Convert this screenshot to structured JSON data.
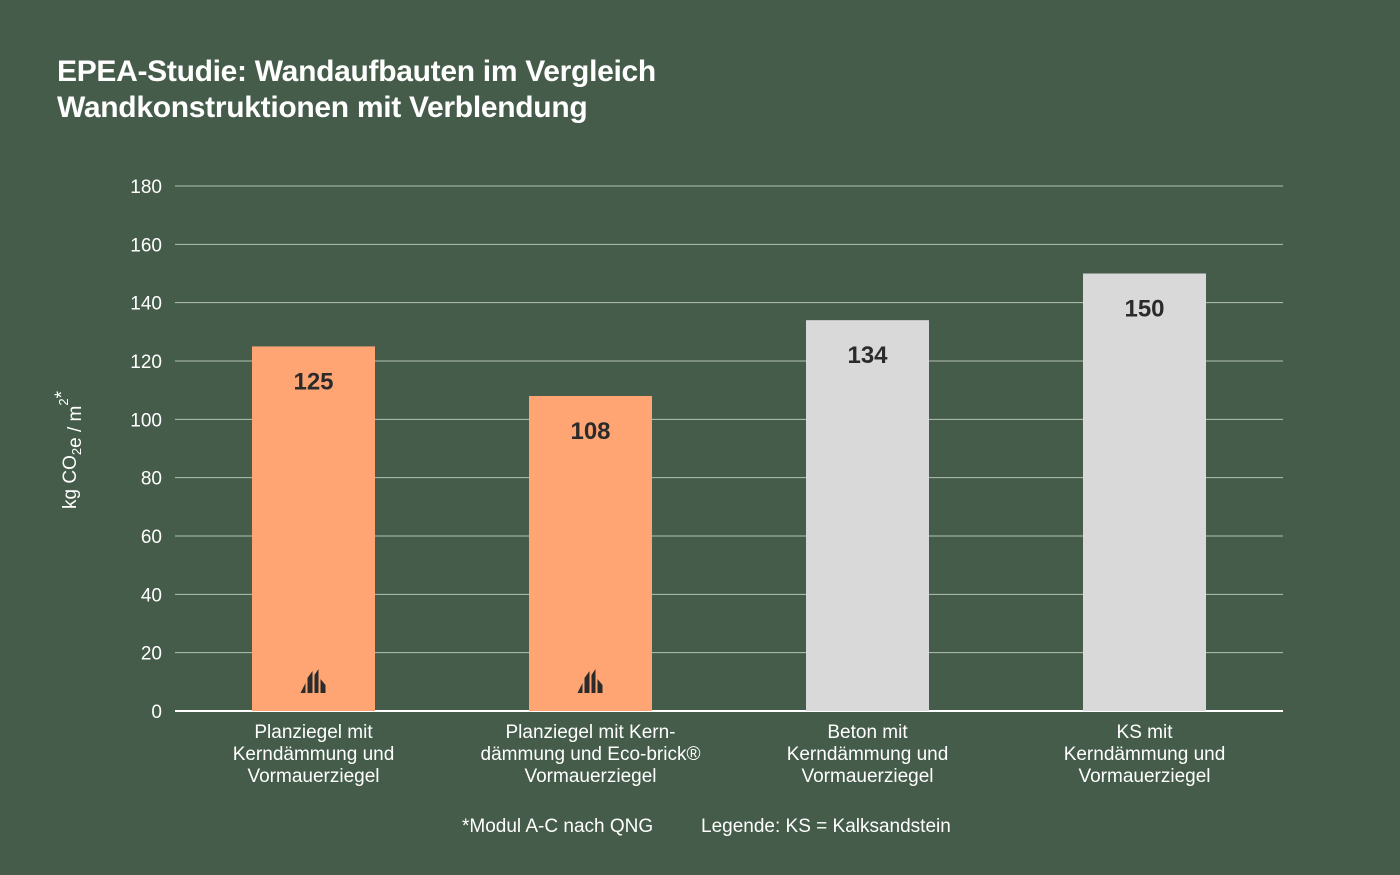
{
  "header": {
    "title": "EPEA-Studie: Wandaufbauten im Vergleich",
    "subtitle": "Wandkonstruktionen mit Verblendung"
  },
  "chart_data": {
    "type": "bar",
    "title": "EPEA-Studie: Wandaufbauten im Vergleich",
    "subtitle": "Wandkonstruktionen mit Verblendung",
    "ylabel": "kg CO₂e / m²*",
    "xlabel": "",
    "ylim": [
      0,
      180
    ],
    "yticks": [
      0,
      20,
      40,
      60,
      80,
      100,
      120,
      140,
      160,
      180
    ],
    "grid": true,
    "categories": [
      [
        "Planziegel mit",
        "Kerndämmung und",
        "Vormauerziegel"
      ],
      [
        "Planziegel mit Kern-",
        "dämmung und Eco-brick®",
        "Vormauerziegel"
      ],
      [
        "Beton mit",
        "Kerndämmung und",
        "Vormauerziegel"
      ],
      [
        "KS mit",
        "Kerndämmung und",
        "Vormauerziegel"
      ]
    ],
    "values": [
      125,
      108,
      134,
      150
    ],
    "bar_colors": [
      "#ffa574",
      "#ffa574",
      "#d9d9d9",
      "#d9d9d9"
    ],
    "brand_icon_on_bars": [
      true,
      true,
      false,
      false
    ],
    "brand_icon": "brick-logo-icon"
  },
  "footer": {
    "footnote": "*Modul A-C nach QNG",
    "legend": "Legende: KS = Kalksandstein"
  },
  "colors": {
    "background": "#445c49",
    "grid": "#c9d2cb",
    "axis": "#ffffff",
    "value_label": "#2b2b2b",
    "icon": "#2b2b2b"
  }
}
